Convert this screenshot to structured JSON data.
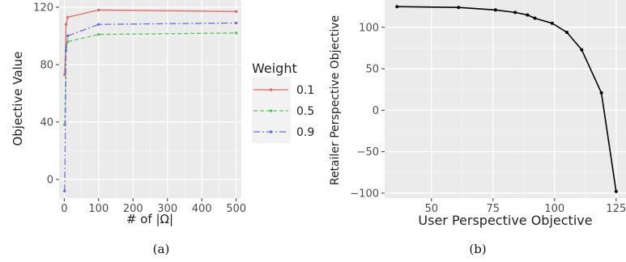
{
  "chart_data": [
    {
      "type": "line",
      "caption": "(a)",
      "xlabel": "# of |Ω|",
      "ylabel": "Objective Value",
      "xlim": [
        -15,
        515
      ],
      "ylim": [
        -13,
        125
      ],
      "xticks": [
        0,
        100,
        200,
        300,
        400,
        500
      ],
      "yticks": [
        0,
        40,
        80,
        120
      ],
      "grid": true,
      "legend_title": "Weight",
      "legend_position": "right",
      "series": [
        {
          "name": "0.1",
          "color": "#e06a63",
          "dash": "",
          "x": [
            1,
            5,
            10,
            100,
            500
          ],
          "y": [
            73,
            108,
            113,
            118,
            117
          ]
        },
        {
          "name": "0.5",
          "color": "#57c457",
          "dash": "5,3",
          "x": [
            1,
            5,
            10,
            100,
            500
          ],
          "y": [
            38,
            92,
            96,
            101,
            102
          ]
        },
        {
          "name": "0.9",
          "color": "#6b6be0",
          "dash": "8,3,2,3",
          "x": [
            1,
            5,
            10,
            100,
            500
          ],
          "y": [
            -8,
            90,
            100,
            108,
            109
          ]
        }
      ]
    },
    {
      "type": "line",
      "caption": "(b)",
      "xlabel": "User Perspective Objective",
      "ylabel": "Retailer Perspective Objective",
      "xlim": [
        31,
        129
      ],
      "ylim": [
        -106,
        133
      ],
      "xticks": [
        50,
        75,
        100,
        125
      ],
      "yticks": [
        -100,
        -50,
        0,
        50,
        100
      ],
      "grid": true,
      "series": [
        {
          "name": "",
          "color": "#000000",
          "dash": "",
          "x": [
            36,
            61,
            76,
            84,
            89,
            92,
            99,
            105,
            111,
            119,
            125
          ],
          "y": [
            125,
            124,
            121,
            118,
            115,
            111,
            105,
            94,
            73,
            21,
            -98
          ]
        }
      ]
    }
  ]
}
